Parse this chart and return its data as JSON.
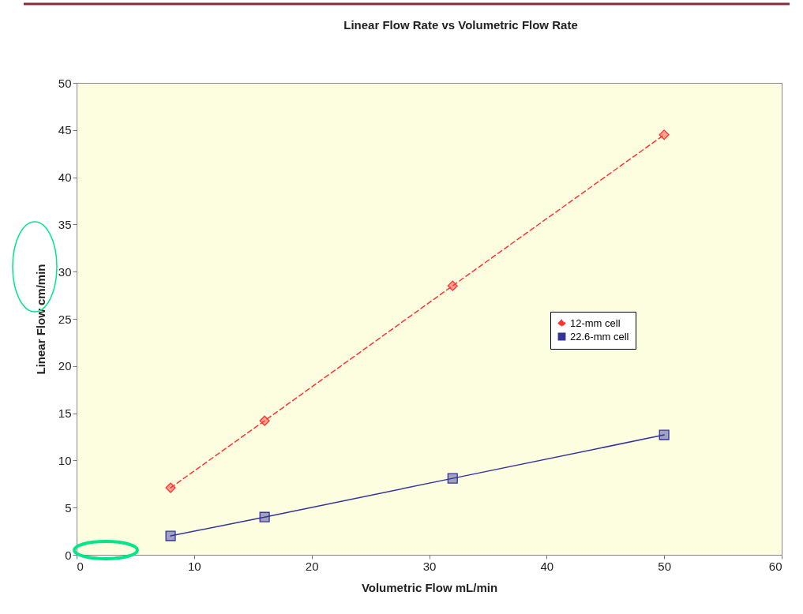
{
  "chart_data": {
    "type": "line",
    "title": "Linear Flow Rate vs Volumetric Flow Rate",
    "xlabel": "Volumetric Flow mL/min",
    "ylabel": "Linear Flow cm/min",
    "x": [
      8,
      16,
      32,
      50
    ],
    "series": [
      {
        "name": "12-mm cell",
        "color": "#ff3333",
        "values": [
          7.1,
          14.2,
          28.5,
          44.5
        ],
        "marker": "diamond",
        "line_style": "dashed"
      },
      {
        "name": "22.6-mm cell",
        "color": "#333399",
        "values": [
          2.0,
          4.0,
          8.1,
          12.7
        ],
        "marker": "square",
        "line_style": "solid"
      }
    ],
    "xlim": [
      0,
      60
    ],
    "xticks": [
      0,
      10,
      20,
      30,
      40,
      50,
      60
    ],
    "ylim": [
      0,
      50
    ],
    "yticks": [
      0,
      5,
      10,
      15,
      20,
      25,
      30,
      35,
      40,
      45,
      50
    ],
    "grid": false,
    "legend": "right"
  }
}
